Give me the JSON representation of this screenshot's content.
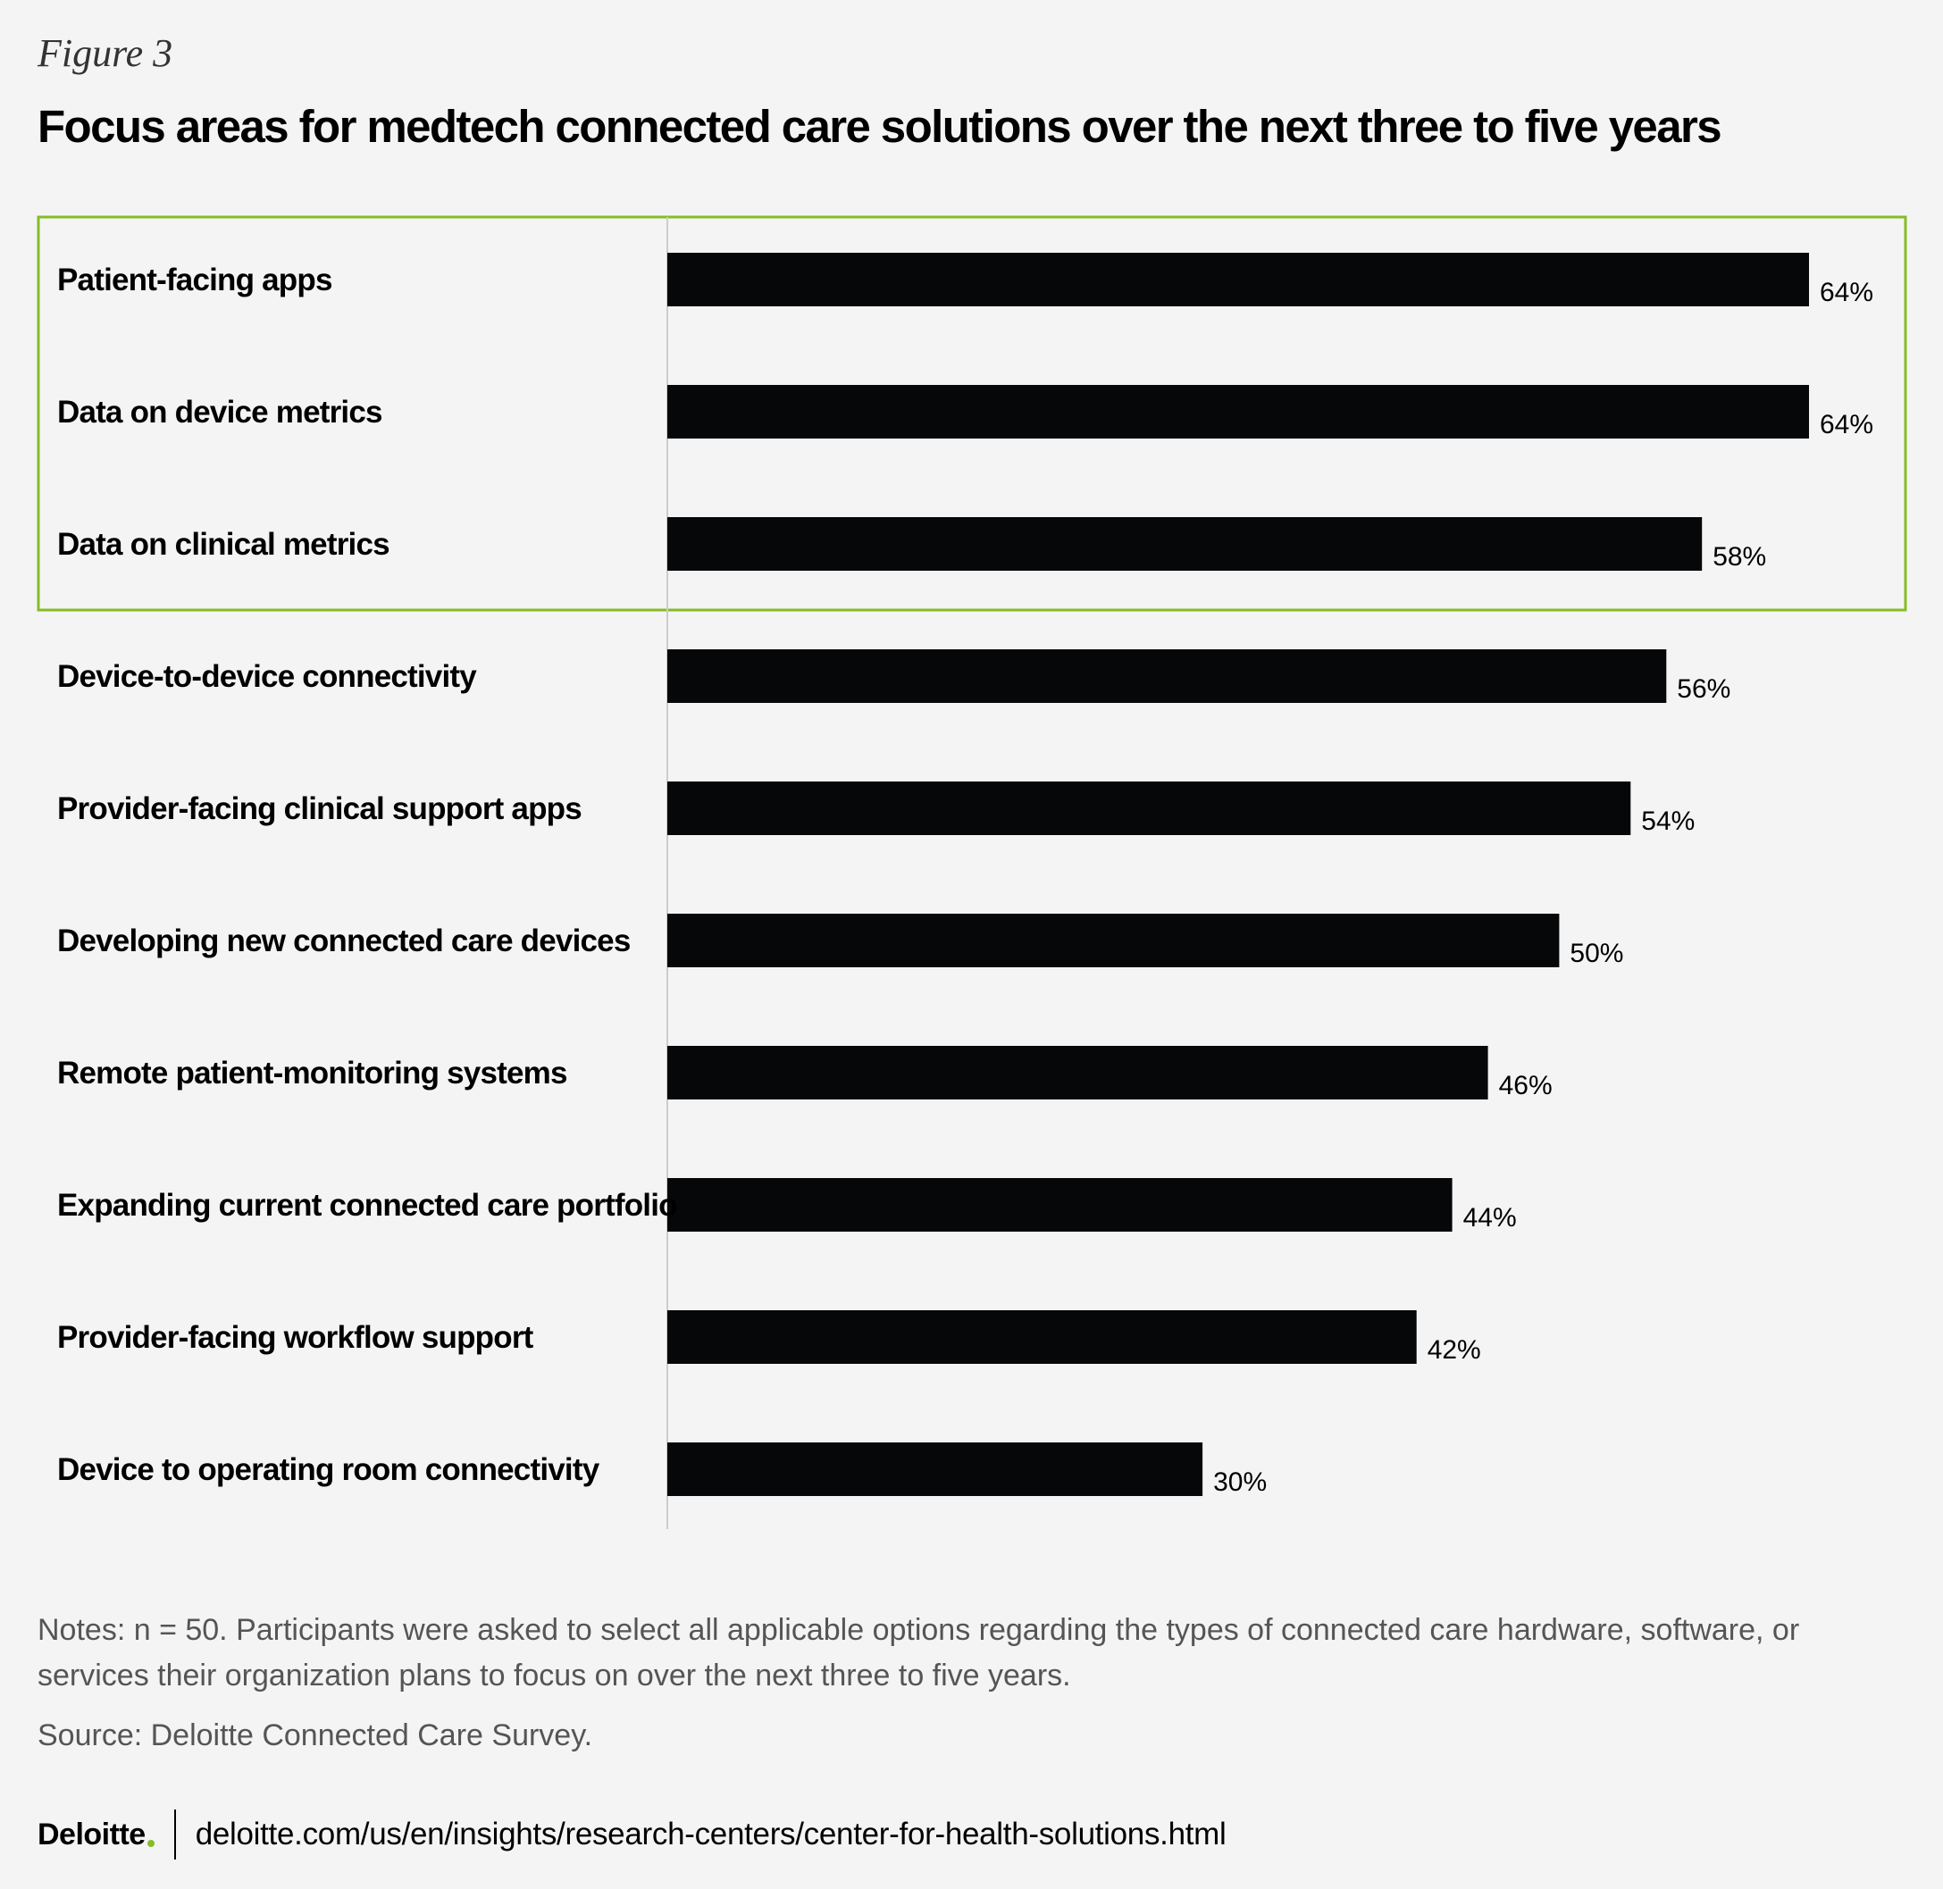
{
  "figure_label": "Figure 3",
  "title": "Focus areas for medtech connected care solutions over the next three to five years",
  "chart_data": {
    "type": "bar",
    "orientation": "horizontal",
    "title": "Focus areas for medtech connected care solutions over the next three to five years",
    "categories": [
      "Patient-facing apps",
      "Data on device metrics",
      "Data on clinical metrics",
      "Device-to-device connectivity",
      "Provider-facing clinical support apps",
      "Developing new connected care devices",
      "Remote patient-monitoring systems",
      "Expanding current connected care portfolio",
      "Provider-facing workflow support",
      "Device to operating room connectivity"
    ],
    "values": [
      64,
      64,
      58,
      56,
      54,
      50,
      46,
      44,
      42,
      30
    ],
    "value_labels": [
      "64%",
      "64%",
      "58%",
      "56%",
      "54%",
      "50%",
      "46%",
      "44%",
      "42%",
      "30%"
    ],
    "unit": "%",
    "xlim": [
      0,
      70
    ],
    "highlighted_categories": [
      0,
      1,
      2
    ],
    "xlabel": "",
    "ylabel": "",
    "grid": false,
    "legend": "none"
  },
  "colors": {
    "background": "#f4f4f4",
    "bar": "#050708",
    "highlight_border": "#86bc25",
    "axis": "#cccccc",
    "brand_dot": "#86bc25"
  },
  "notes": "Notes: n = 50. Participants were asked to select all applicable options regarding the types of connected care hardware, software, or services their organization plans to focus on over the next three to five years.",
  "source": "Source: Deloitte Connected Care Survey.",
  "footer": {
    "brand": "Deloitte",
    "url": "deloitte.com/us/en/insights/research-centers/center-for-health-solutions.html"
  }
}
